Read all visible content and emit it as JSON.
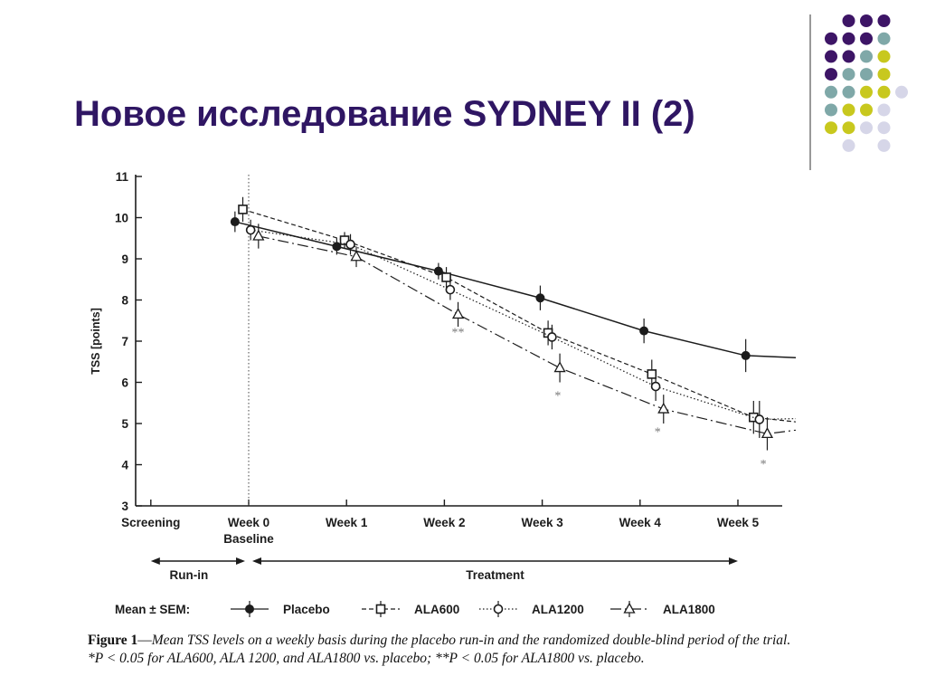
{
  "slide": {
    "title": "Новое исследование SYDNEY II (2)"
  },
  "decoration": {
    "dot_colors": [
      "#3d1566",
      "#7fa8a8",
      "#c8c81e",
      "#d6d6e8"
    ],
    "divider_color": "#555555"
  },
  "chart_data": {
    "type": "line",
    "ylabel": "TSS [points]",
    "xlabel": "",
    "ylim": [
      3,
      11
    ],
    "yticks": [
      3,
      4,
      5,
      6,
      7,
      8,
      9,
      10,
      11
    ],
    "categories": [
      "Screening",
      "Week 0",
      "Week 1",
      "Week 2",
      "Week 3",
      "Week 4",
      "Week 5"
    ],
    "category_sublabels": {
      "Week 0": "Baseline"
    },
    "grid": false,
    "baseline_divider_at": "Week 0",
    "periods": [
      {
        "label": "Run-in",
        "from": "Screening",
        "to": "Week 0"
      },
      {
        "label": "Treatment",
        "from": "Week 0",
        "to": "Week 5"
      }
    ],
    "legend_prefix": "Mean ± SEM:",
    "legend_position": "bottom",
    "series": [
      {
        "name": "Placebo",
        "marker": "filled-circle",
        "dash": "solid",
        "x": [
          -0.14,
          0.9,
          1.94,
          2.98,
          4.04,
          5.08,
          6.06
        ],
        "values": [
          9.9,
          9.3,
          8.7,
          8.05,
          7.25,
          6.65,
          6.55
        ],
        "sem": [
          0.25,
          0.2,
          0.2,
          0.3,
          0.3,
          0.4,
          0.45
        ]
      },
      {
        "name": "ALA600",
        "marker": "open-square",
        "dash": "short-dash",
        "x": [
          -0.06,
          0.98,
          2.02,
          3.06,
          4.12,
          5.16,
          6.14
        ],
        "values": [
          10.2,
          9.45,
          8.55,
          7.2,
          6.2,
          5.15,
          4.9
        ],
        "sem": [
          0.3,
          0.2,
          0.25,
          0.3,
          0.35,
          0.4,
          0.45
        ]
      },
      {
        "name": "ALA1200",
        "marker": "open-circle",
        "dash": "dotted",
        "x": [
          0.02,
          1.04,
          2.06,
          3.1,
          4.16,
          5.22,
          6.22
        ],
        "values": [
          9.7,
          9.35,
          8.25,
          7.1,
          5.9,
          5.1,
          5.15
        ],
        "sem": [
          0.25,
          0.25,
          0.25,
          0.3,
          0.35,
          0.45,
          0.4
        ]
      },
      {
        "name": "ALA1800",
        "marker": "open-triangle",
        "dash": "long-dash-dot",
        "x": [
          0.1,
          1.1,
          2.14,
          3.18,
          4.24,
          5.3,
          6.28
        ],
        "values": [
          9.55,
          9.05,
          7.65,
          6.35,
          5.35,
          4.75,
          5.05
        ],
        "sem": [
          0.3,
          0.25,
          0.3,
          0.35,
          0.35,
          0.4,
          0.45
        ]
      }
    ],
    "annotations": [
      {
        "text": "**",
        "category": "Week 1",
        "x": 2.14,
        "y": 7.12
      },
      {
        "text": "*",
        "category": "Week 2",
        "x": 3.16,
        "y": 5.58
      },
      {
        "text": "*",
        "category": "Week 3",
        "x": 4.18,
        "y": 4.7
      },
      {
        "text": "*",
        "category": "Week 4",
        "x": 5.26,
        "y": 3.92
      },
      {
        "text": "*",
        "category": "Week 5",
        "x": 6.24,
        "y": 3.92
      }
    ]
  },
  "caption": {
    "label": "Figure 1",
    "dash": "—",
    "text": "Mean TSS levels on a weekly basis during the placebo run-in and the randomized double-blind period of the trial. *P < 0.05 for ALA600, ALA 1200, and ALA1800 vs. placebo; **P < 0.05 for ALA1800 vs. placebo."
  }
}
